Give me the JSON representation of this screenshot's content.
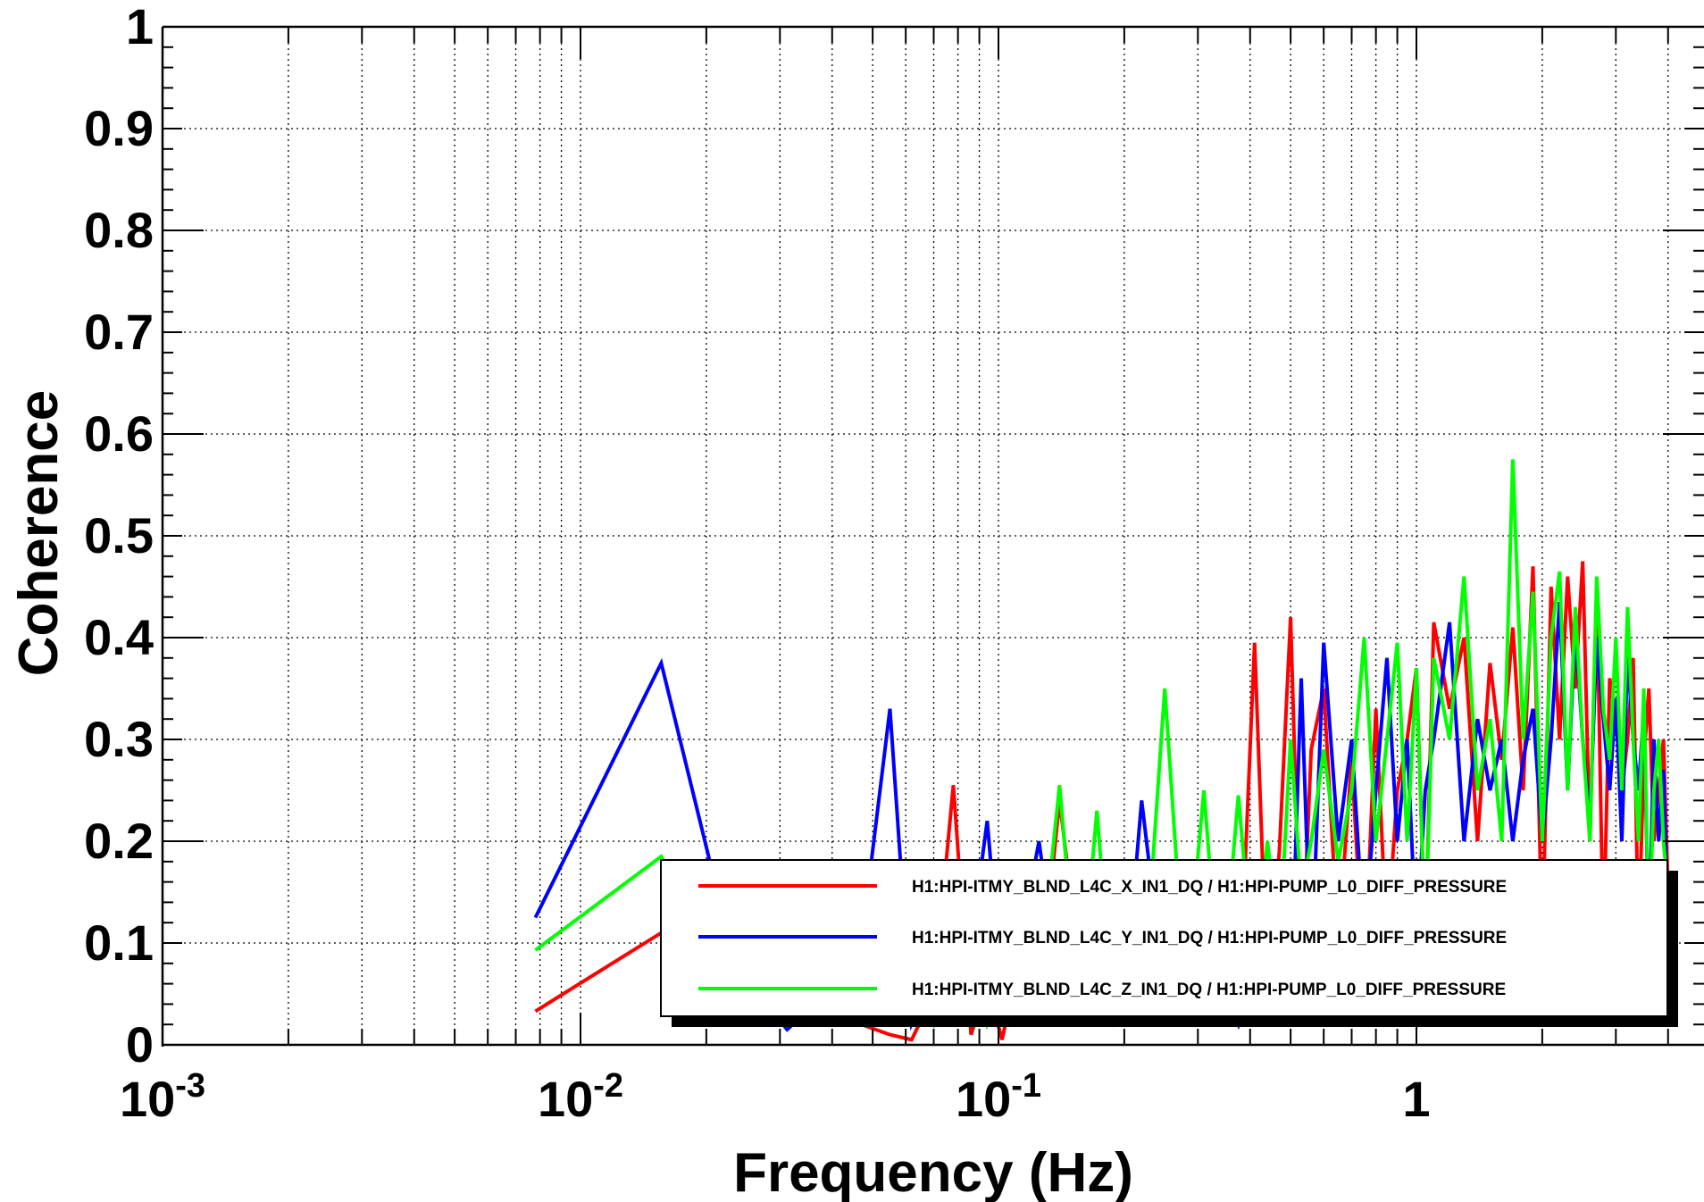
{
  "chart_data": {
    "type": "line",
    "xlabel": "Frequency (Hz)",
    "ylabel": "Coherence",
    "xscale": "log",
    "xlim": [
      0.001,
      10
    ],
    "ylim": [
      0,
      1
    ],
    "grid": true,
    "legend_position": "bottom-right",
    "x_tick_labels": [
      {
        "value": 0.001,
        "base": "10",
        "exp": "-3"
      },
      {
        "value": 0.01,
        "base": "10",
        "exp": "-2"
      },
      {
        "value": 0.1,
        "base": "10",
        "exp": "-1"
      },
      {
        "value": 1,
        "base": "1",
        "exp": ""
      }
    ],
    "y_tick_labels": [
      "0",
      "0.1",
      "0.2",
      "0.3",
      "0.4",
      "0.5",
      "0.6",
      "0.7",
      "0.8",
      "0.9",
      "1"
    ],
    "series": [
      {
        "name": "H1:HPI-ITMY_BLND_L4C_X_IN1_DQ / H1:HPI-PUMP_L0_DIFF_PRESSURE",
        "color": "#ff0000",
        "x": [
          0.0078,
          0.0156,
          0.0234,
          0.0312,
          0.039,
          0.047,
          0.055,
          0.062,
          0.07,
          0.078,
          0.086,
          0.094,
          0.102,
          0.109,
          0.125,
          0.14,
          0.156,
          0.172,
          0.187,
          0.203,
          0.22,
          0.25,
          0.28,
          0.31,
          0.34,
          0.375,
          0.41,
          0.44,
          0.47,
          0.5,
          0.53,
          0.56,
          0.6,
          0.65,
          0.7,
          0.75,
          0.8,
          0.85,
          0.9,
          0.95,
          1.0,
          1.05,
          1.1,
          1.2,
          1.3,
          1.4,
          1.5,
          1.6,
          1.7,
          1.8,
          1.9,
          2.0,
          2.1,
          2.2,
          2.3,
          2.4,
          2.5,
          2.6,
          2.7,
          2.8,
          2.9,
          3.0,
          3.1,
          3.2,
          3.3,
          3.4,
          3.5,
          3.6,
          3.7,
          3.8,
          3.9,
          4.0
        ],
        "y": [
          0.033,
          0.11,
          0.06,
          0.03,
          0.045,
          0.02,
          0.01,
          0.005,
          0.05,
          0.255,
          0.01,
          0.06,
          0.005,
          0.06,
          0.04,
          0.24,
          0.08,
          0.02,
          0.03,
          0.07,
          0.04,
          0.03,
          0.09,
          0.04,
          0.03,
          0.02,
          0.395,
          0.05,
          0.19,
          0.42,
          0.06,
          0.29,
          0.35,
          0.1,
          0.28,
          0.06,
          0.33,
          0.1,
          0.25,
          0.3,
          0.37,
          0.1,
          0.415,
          0.33,
          0.4,
          0.2,
          0.375,
          0.28,
          0.41,
          0.25,
          0.47,
          0.1,
          0.45,
          0.3,
          0.46,
          0.35,
          0.475,
          0.2,
          0.45,
          0.1,
          0.36,
          0.32,
          0.25,
          0.3,
          0.38,
          0.1,
          0.28,
          0.35,
          0.2,
          0.25,
          0.3,
          0.15
        ]
      },
      {
        "name": "H1:HPI-ITMY_BLND_L4C_Y_IN1_DQ / H1:HPI-PUMP_L0_DIFF_PRESSURE",
        "color": "#0000ff",
        "x": [
          0.0078,
          0.0156,
          0.0234,
          0.0312,
          0.039,
          0.047,
          0.055,
          0.062,
          0.07,
          0.078,
          0.086,
          0.094,
          0.102,
          0.109,
          0.125,
          0.14,
          0.156,
          0.172,
          0.187,
          0.203,
          0.22,
          0.25,
          0.28,
          0.31,
          0.34,
          0.375,
          0.41,
          0.44,
          0.47,
          0.5,
          0.53,
          0.56,
          0.6,
          0.65,
          0.7,
          0.75,
          0.8,
          0.85,
          0.9,
          0.95,
          1.0,
          1.05,
          1.1,
          1.2,
          1.3,
          1.4,
          1.5,
          1.6,
          1.7,
          1.8,
          1.9,
          2.0,
          2.1,
          2.2,
          2.3,
          2.4,
          2.5,
          2.6,
          2.7,
          2.8,
          2.9,
          3.0,
          3.1,
          3.2,
          3.3,
          3.4,
          3.5,
          3.6,
          3.7,
          3.8,
          3.9,
          4.0
        ],
        "y": [
          0.125,
          0.375,
          0.08,
          0.015,
          0.05,
          0.1,
          0.33,
          0.02,
          0.06,
          0.04,
          0.1,
          0.22,
          0.05,
          0.07,
          0.2,
          0.05,
          0.1,
          0.03,
          0.02,
          0.07,
          0.24,
          0.05,
          0.03,
          0.09,
          0.06,
          0.02,
          0.08,
          0.05,
          0.1,
          0.04,
          0.36,
          0.07,
          0.395,
          0.2,
          0.3,
          0.1,
          0.25,
          0.38,
          0.2,
          0.3,
          0.1,
          0.25,
          0.3,
          0.415,
          0.2,
          0.32,
          0.25,
          0.3,
          0.2,
          0.28,
          0.33,
          0.2,
          0.3,
          0.435,
          0.25,
          0.41,
          0.3,
          0.22,
          0.4,
          0.32,
          0.25,
          0.34,
          0.2,
          0.385,
          0.3,
          0.25,
          0.33,
          0.1,
          0.3,
          0.2,
          0.27,
          0.1
        ]
      },
      {
        "name": "H1:HPI-ITMY_BLND_L4C_Z_IN1_DQ / H1:HPI-PUMP_L0_DIFF_PRESSURE",
        "color": "#00ff00",
        "x": [
          0.0078,
          0.0156,
          0.0234,
          0.0312,
          0.039,
          0.047,
          0.055,
          0.062,
          0.07,
          0.078,
          0.086,
          0.094,
          0.102,
          0.109,
          0.125,
          0.14,
          0.156,
          0.172,
          0.187,
          0.203,
          0.22,
          0.25,
          0.28,
          0.31,
          0.34,
          0.375,
          0.41,
          0.44,
          0.47,
          0.5,
          0.53,
          0.56,
          0.6,
          0.65,
          0.7,
          0.75,
          0.8,
          0.85,
          0.9,
          0.95,
          1.0,
          1.05,
          1.1,
          1.2,
          1.3,
          1.4,
          1.5,
          1.6,
          1.7,
          1.8,
          1.9,
          2.0,
          2.1,
          2.2,
          2.3,
          2.4,
          2.5,
          2.6,
          2.7,
          2.8,
          2.9,
          3.0,
          3.1,
          3.2,
          3.3,
          3.4,
          3.5,
          3.6,
          3.7,
          3.8,
          3.9,
          4.0
        ],
        "y": [
          0.093,
          0.185,
          0.06,
          0.03,
          0.08,
          0.02,
          0.04,
          0.06,
          0.02,
          0.07,
          0.1,
          0.02,
          0.05,
          0.03,
          0.06,
          0.255,
          0.03,
          0.23,
          0.04,
          0.1,
          0.02,
          0.35,
          0.05,
          0.25,
          0.04,
          0.245,
          0.06,
          0.2,
          0.1,
          0.3,
          0.15,
          0.2,
          0.29,
          0.18,
          0.25,
          0.4,
          0.2,
          0.3,
          0.395,
          0.2,
          0.37,
          0.1,
          0.38,
          0.3,
          0.46,
          0.25,
          0.32,
          0.2,
          0.575,
          0.3,
          0.445,
          0.2,
          0.4,
          0.465,
          0.25,
          0.43,
          0.3,
          0.2,
          0.46,
          0.33,
          0.28,
          0.4,
          0.25,
          0.43,
          0.3,
          0.2,
          0.35,
          0.1,
          0.25,
          0.3,
          0.2,
          0.15
        ]
      }
    ]
  }
}
